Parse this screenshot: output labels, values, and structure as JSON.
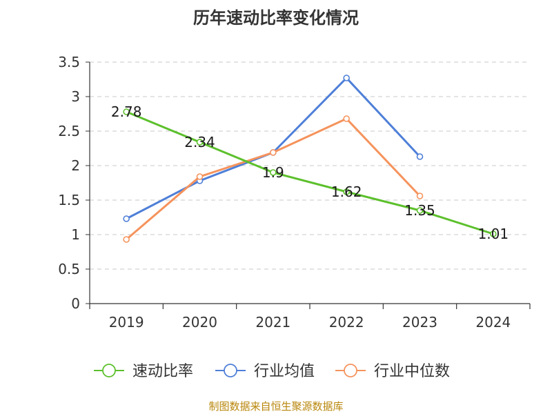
{
  "title": "历年速动比率变化情况",
  "source_text": "制图数据来自恒生聚源数据库",
  "colors": {
    "速动比率": "#5cc02c",
    "行业均值": "#4e7fd8",
    "行业中位数": "#f5935c",
    "grid": "#c8c8c8",
    "axis": "#333333"
  },
  "chart_data": {
    "type": "line",
    "title": "历年速动比率变化情况",
    "xlabel": "",
    "ylabel": "",
    "categories": [
      "2019",
      "2020",
      "2021",
      "2022",
      "2023",
      "2024"
    ],
    "ylim": [
      0,
      3.5
    ],
    "yticks": [
      0,
      0.5,
      1,
      1.5,
      2,
      2.5,
      3,
      3.5
    ],
    "ytick_labels": [
      "0",
      "0.5",
      "1",
      "1.5",
      "2",
      "2.5",
      "3",
      "3.5"
    ],
    "grid": true,
    "legend_position": "bottom",
    "series": [
      {
        "name": "速动比率",
        "values": [
          2.78,
          2.34,
          1.9,
          1.62,
          1.35,
          1.01
        ],
        "data_labels": [
          "2.78",
          "2.34",
          "1.9",
          "1.62",
          "1.35",
          "1.01"
        ]
      },
      {
        "name": "行业均值",
        "values": [
          1.23,
          1.78,
          2.19,
          3.27,
          2.13,
          null
        ]
      },
      {
        "name": "行业中位数",
        "values": [
          0.93,
          1.84,
          2.19,
          2.68,
          1.56,
          null
        ]
      }
    ]
  }
}
